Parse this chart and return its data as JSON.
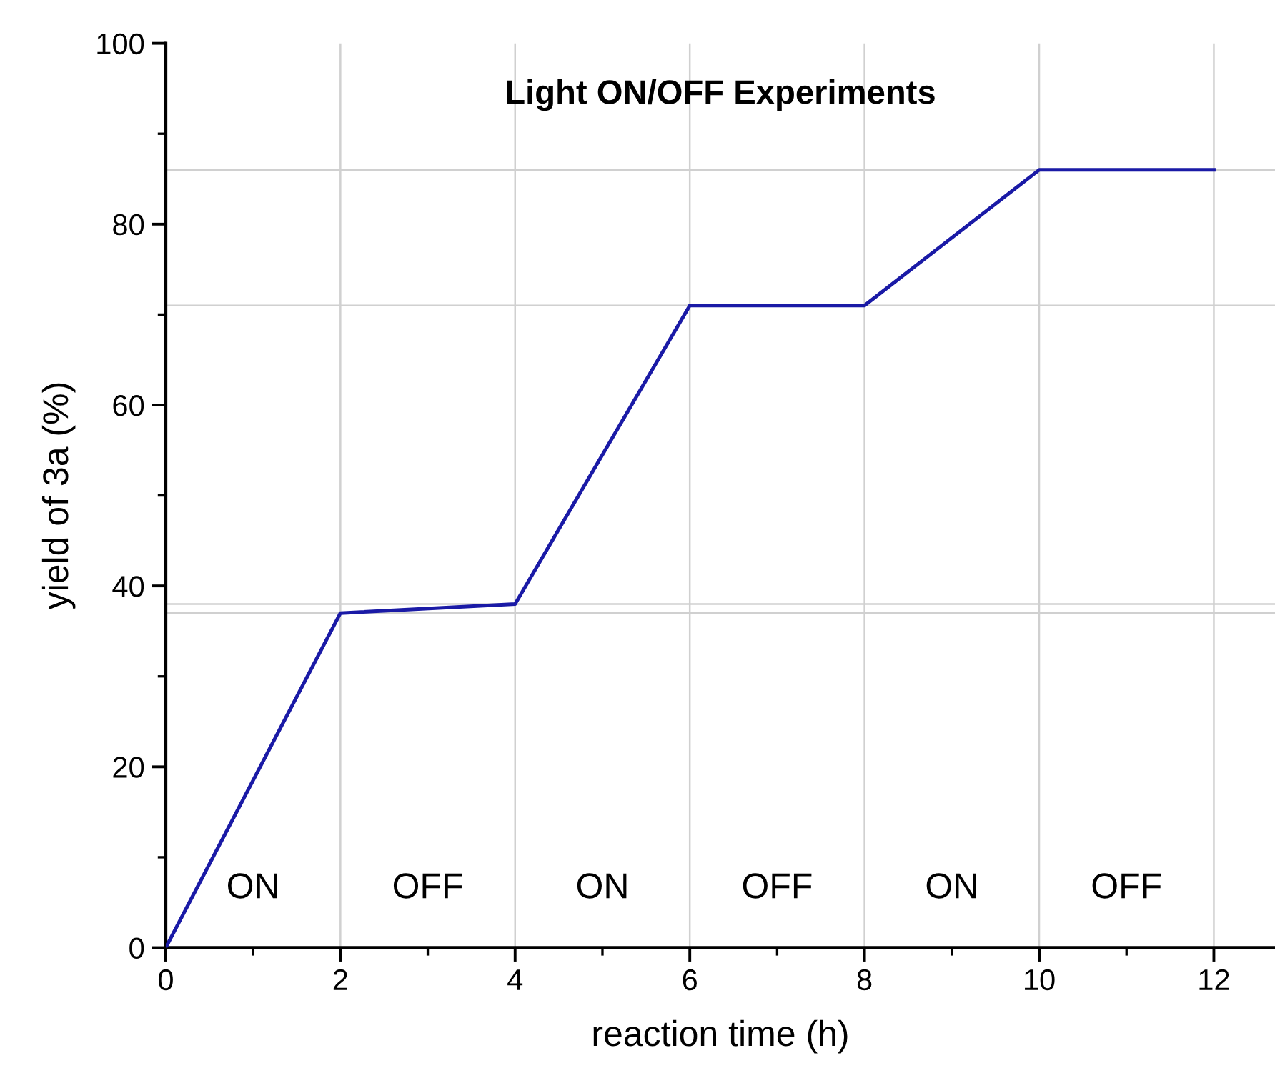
{
  "chart_data": {
    "type": "line",
    "title": "Light ON/OFF Experiments",
    "xlabel": "reaction time (h)",
    "ylabel": "yield of 3a (%)",
    "x": [
      0,
      2,
      4,
      6,
      8,
      10,
      12
    ],
    "series": [
      {
        "color": "#1a1aa6",
        "values": [
          0,
          37,
          38,
          71,
          71,
          86,
          86
        ]
      }
    ],
    "xlim": [
      0,
      12.7
    ],
    "xticks": [
      0,
      2,
      4,
      6,
      8,
      10,
      12
    ],
    "ylim": [
      0,
      100
    ],
    "yticks": [
      0,
      20,
      40,
      60,
      80,
      100
    ],
    "grid": false,
    "marker": "none",
    "line_style": "solid",
    "ref_lines": [
      {
        "axis": "y",
        "value": 37,
        "color": "#d0d0d0"
      },
      {
        "axis": "y",
        "value": 38,
        "color": "#d0d0d0"
      },
      {
        "axis": "y",
        "value": 71,
        "color": "#d0d0d0"
      },
      {
        "axis": "y",
        "value": 86,
        "color": "#d0d0d0"
      },
      {
        "axis": "x",
        "value": 2,
        "color": "#d0d0d0"
      },
      {
        "axis": "x",
        "value": 4,
        "color": "#d0d0d0"
      },
      {
        "axis": "x",
        "value": 6,
        "color": "#d0d0d0"
      },
      {
        "axis": "x",
        "value": 8,
        "color": "#d0d0d0"
      },
      {
        "axis": "x",
        "value": 10,
        "color": "#d0d0d0"
      },
      {
        "axis": "x",
        "value": 12,
        "color": "#d0d0d0"
      }
    ],
    "annotations": [
      "ON",
      "OFF",
      "ON",
      "OFF",
      "ON",
      "OFF"
    ]
  }
}
